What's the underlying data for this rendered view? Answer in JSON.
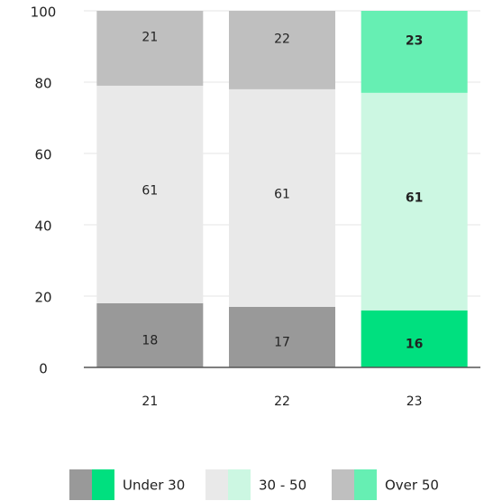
{
  "chart_data": {
    "type": "stacked_bar",
    "categories": [
      "21",
      "22",
      "23"
    ],
    "series": [
      {
        "name": "Under 30",
        "colors": [
          "#999999",
          "#999999",
          "#00e07f"
        ],
        "values": [
          18,
          17,
          16
        ]
      },
      {
        "name": "30 - 50",
        "colors": [
          "#e9e9e9",
          "#e9e9e9",
          "#ccf7e2"
        ],
        "values": [
          61,
          61,
          61
        ]
      },
      {
        "name": "Over 50",
        "colors": [
          "#bfbfbf",
          "#bfbfbf",
          "#66efb3"
        ],
        "values": [
          21,
          22,
          23
        ]
      }
    ],
    "ylim": [
      0,
      100
    ],
    "yticks": [
      0,
      20,
      40,
      60,
      80,
      100
    ],
    "grid": true,
    "legend": "bottom"
  }
}
